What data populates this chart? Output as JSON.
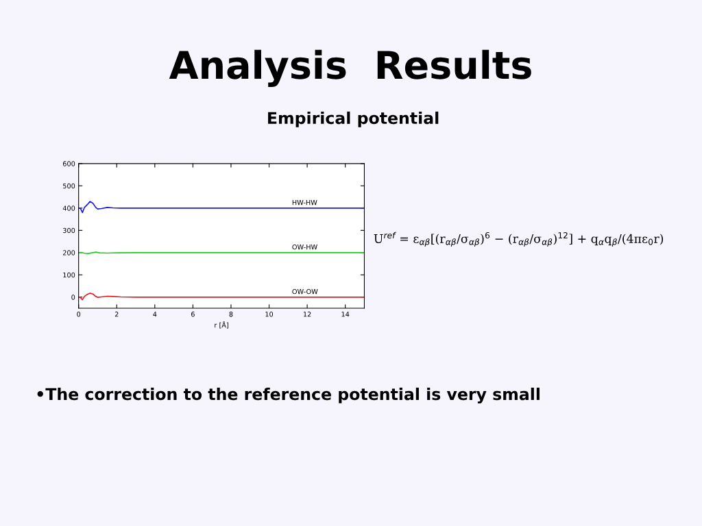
{
  "chart_data": {
    "type": "line",
    "title": "Analysis  Results",
    "subtitle": "Empirical potential",
    "xlabel": "r [Å]",
    "xlim": [
      0,
      15
    ],
    "xticks": [
      0,
      2,
      4,
      6,
      8,
      10,
      12,
      14
    ],
    "ylim": [
      -50,
      600
    ],
    "yticks": [
      0,
      100,
      200,
      300,
      400,
      500,
      600
    ],
    "grid": false,
    "legend": false,
    "marker": "none",
    "line_style": "solid",
    "series": [
      {
        "name": "HW-HW",
        "color": "#1a1ae6",
        "x": [
          0,
          0.1,
          0.2,
          0.3,
          0.45,
          0.6,
          0.75,
          0.9,
          1.0,
          1.2,
          1.5,
          1.8,
          2.2,
          15
        ],
        "values": [
          400,
          398,
          380,
          402,
          415,
          430,
          422,
          403,
          396,
          398,
          403,
          401,
          400,
          400
        ]
      },
      {
        "name": "OW-HW",
        "color": "#22cc22",
        "x": [
          0,
          0.15,
          0.3,
          0.5,
          0.7,
          0.9,
          1.1,
          1.5,
          2.0,
          3,
          15
        ],
        "values": [
          200,
          201,
          197,
          196,
          199,
          202,
          199,
          198,
          199,
          200,
          200
        ]
      },
      {
        "name": "OW-OW",
        "color": "#e02020",
        "x": [
          0,
          0.1,
          0.2,
          0.3,
          0.45,
          0.6,
          0.75,
          0.9,
          1.0,
          1.2,
          1.5,
          1.8,
          2.2,
          3,
          15
        ],
        "values": [
          0,
          -2,
          -12,
          3,
          12,
          18,
          14,
          3,
          -1,
          1,
          4,
          3,
          1,
          0,
          0
        ]
      }
    ],
    "annotations": [
      "U$^{ref}$ = ε$_{αβ}$[(r$_{αβ}$/σ$_{αβ}$)$^{6}$ − (r$_{αβ}$/σ$_{αβ}$)$^{12}$] + q$_{α}$q$_{β}$/(4πε$_{0}$r)",
      "•The correction to the reference potential is very small"
    ]
  }
}
